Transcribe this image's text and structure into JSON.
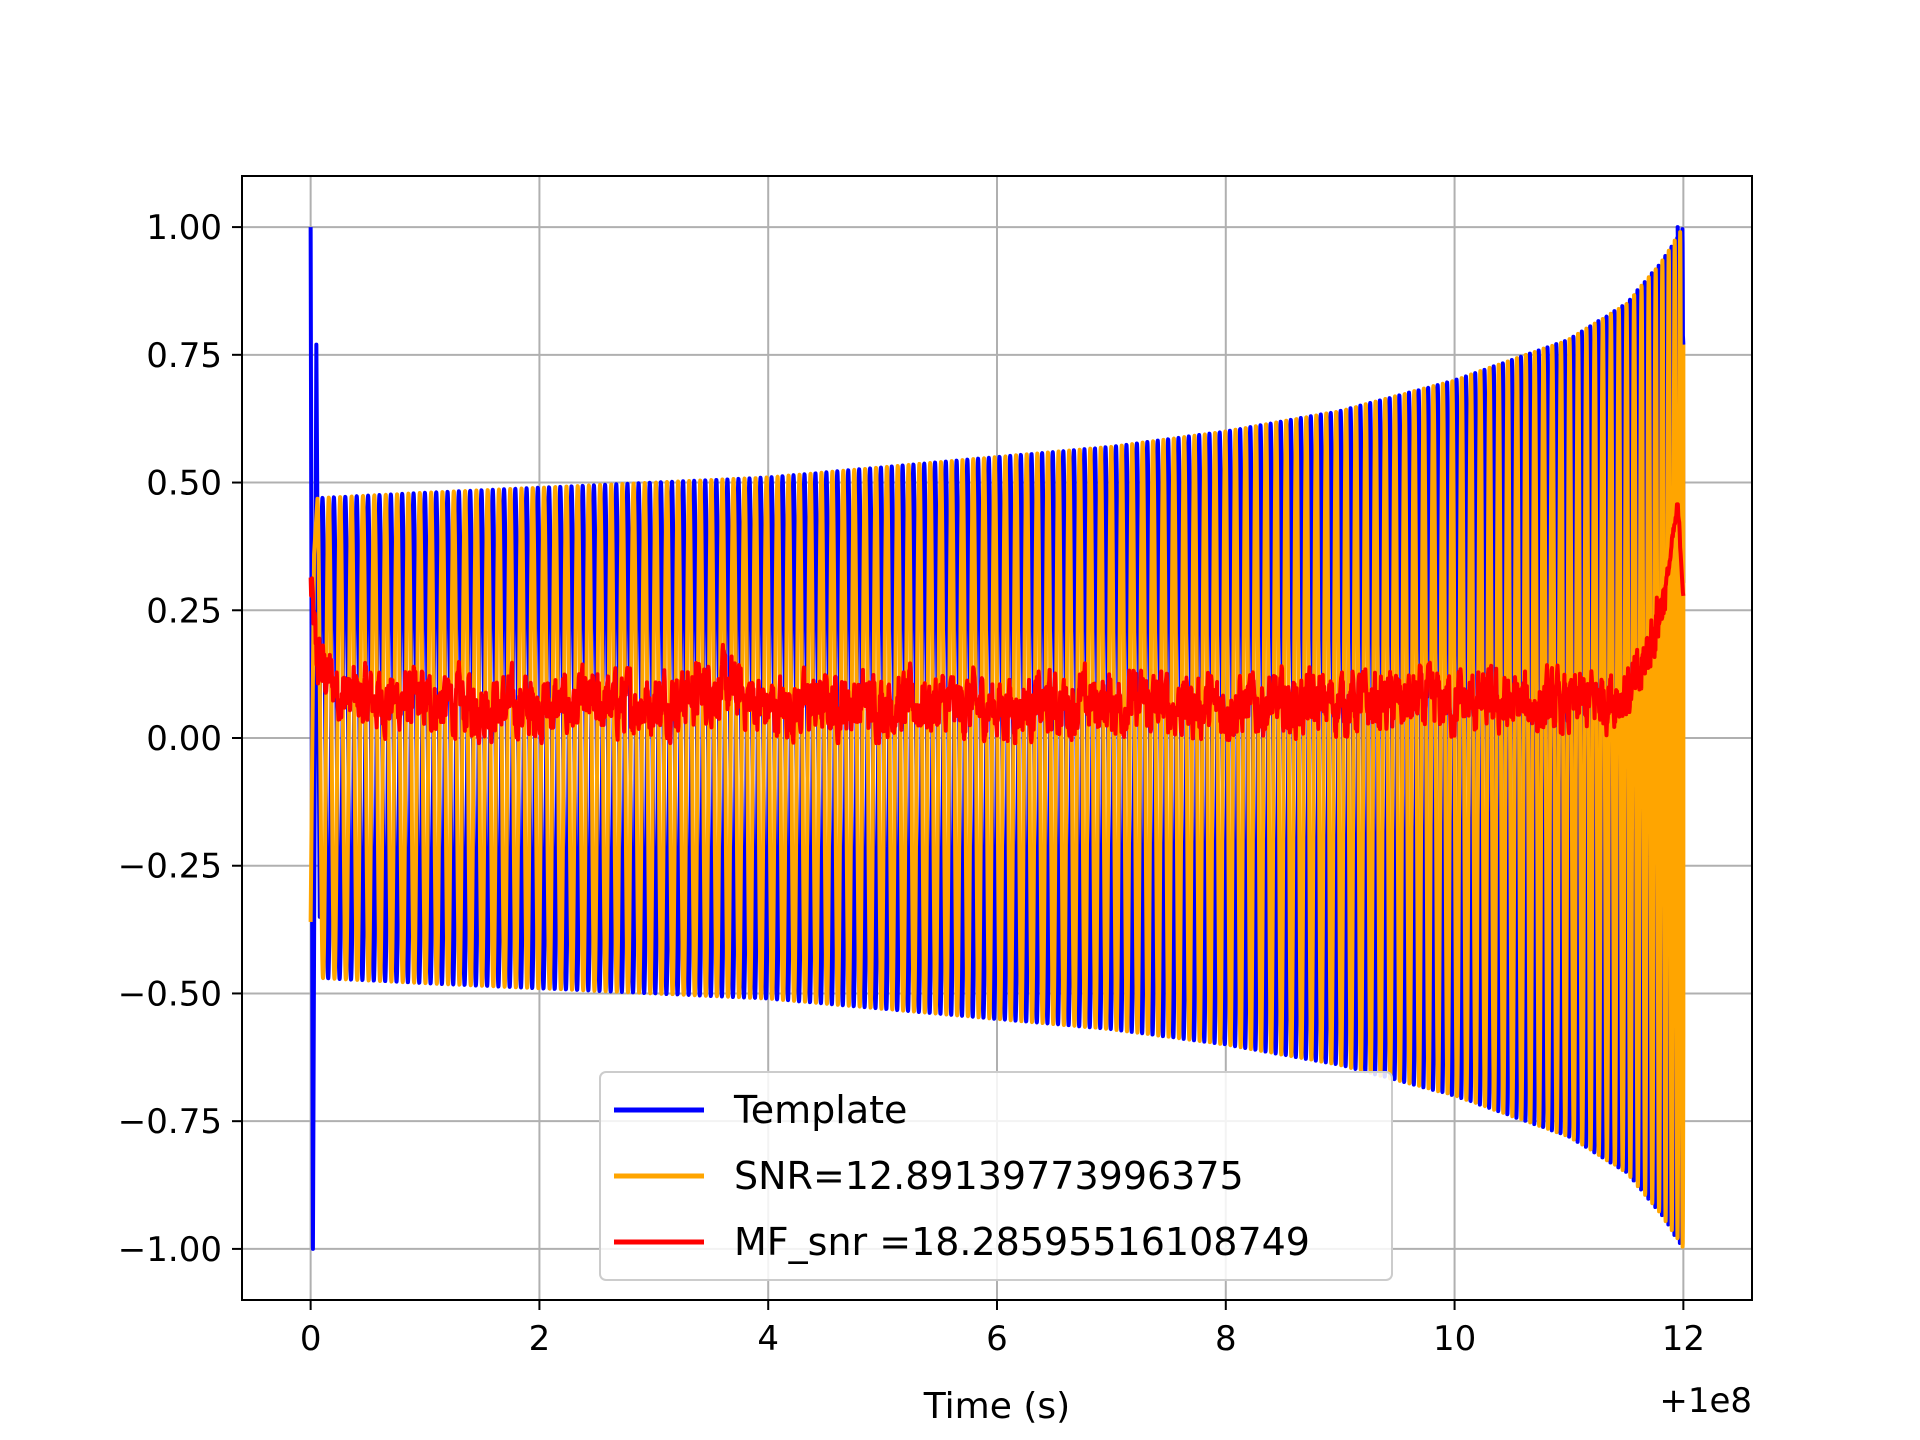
{
  "chart_data": {
    "type": "line",
    "title": "",
    "xlabel": "Time (s)",
    "ylabel": "",
    "x_offset_label": "+1e8",
    "xlim": [
      -0.6,
      12.6
    ],
    "ylim": [
      -1.1,
      1.1
    ],
    "xticks": [
      0,
      2,
      4,
      6,
      8,
      10,
      12
    ],
    "xtick_labels": [
      "0",
      "2",
      "4",
      "6",
      "8",
      "10",
      "12"
    ],
    "yticks": [
      1.0,
      0.75,
      0.5,
      0.25,
      0.0,
      -0.25,
      -0.5,
      -0.75,
      -1.0
    ],
    "ytick_labels": [
      "1.00",
      "0.75",
      "0.50",
      "0.25",
      "0.00",
      "−0.25",
      "−0.50",
      "−0.75",
      "−1.00"
    ],
    "grid": true,
    "legend_position": "lower-center",
    "series": [
      {
        "name": "Template",
        "color": "#0000ff",
        "description_points": {
          "x": [
            0.0,
            0.02,
            0.05,
            0.1,
            1,
            2,
            3,
            4,
            5,
            6,
            7,
            8,
            9,
            10,
            11,
            11.5,
            11.8,
            12.0
          ],
          "envelope": [
            1.0,
            -1.0,
            0.77,
            0.47,
            0.48,
            0.49,
            0.5,
            0.51,
            0.53,
            0.55,
            0.57,
            0.6,
            0.64,
            0.7,
            0.78,
            0.85,
            0.93,
            1.0
          ]
        }
      },
      {
        "name": "SNR=12.89139773996375",
        "color": "#ffa500",
        "description_points": {
          "x": [
            0.0,
            0.1,
            1,
            2,
            3,
            4,
            5,
            6,
            7,
            8,
            9,
            10,
            11,
            11.5,
            11.8,
            12.0
          ],
          "envelope": [
            0.36,
            0.47,
            0.48,
            0.49,
            0.5,
            0.51,
            0.53,
            0.55,
            0.57,
            0.6,
            0.64,
            0.7,
            0.78,
            0.85,
            0.93,
            1.0
          ]
        }
      },
      {
        "name": "MF_snr =18.28595516108749",
        "color": "#ff0000",
        "description_points": {
          "x": [
            0.0,
            0.05,
            0.3,
            1,
            2,
            3,
            3.6,
            4,
            5,
            6,
            7,
            8,
            9,
            10,
            11,
            11.6,
            11.85,
            11.95,
            12.0
          ],
          "y": [
            0.3,
            0.15,
            0.08,
            0.07,
            0.06,
            0.07,
            0.1,
            0.06,
            0.07,
            0.06,
            0.07,
            0.06,
            0.07,
            0.07,
            0.06,
            0.1,
            0.3,
            0.45,
            0.29
          ]
        }
      }
    ]
  }
}
